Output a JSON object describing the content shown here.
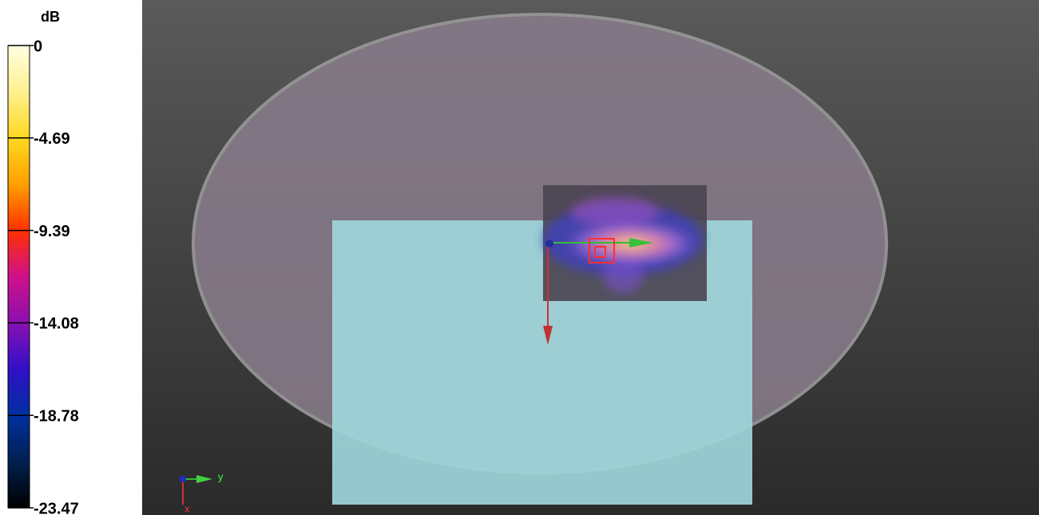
{
  "colorbar": {
    "unit": "dB",
    "ticks": [
      0,
      -4.69,
      -9.39,
      -14.08,
      -18.78,
      -23.47
    ]
  },
  "axes": {
    "y": "y",
    "x": "x"
  }
}
